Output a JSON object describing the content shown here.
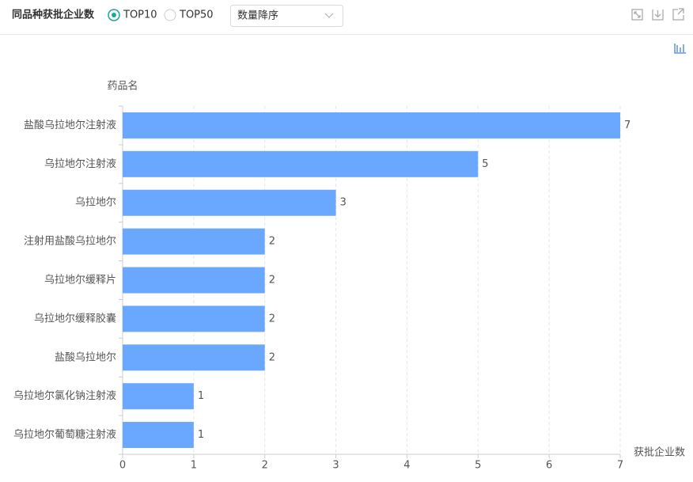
{
  "header": {
    "title": "同品种获批企业数",
    "options": [
      "TOP10",
      "TOP50"
    ],
    "selected_option": 0,
    "sort": "数量降序"
  },
  "chart_data": {
    "type": "bar",
    "orientation": "horizontal",
    "y_label": "药品名",
    "x_label": "获批企业数",
    "categories": [
      "盐酸乌拉地尔注射液",
      "乌拉地尔注射液",
      "乌拉地尔",
      "注射用盐酸乌拉地尔",
      "乌拉地尔缓释片",
      "乌拉地尔缓释胶囊",
      "盐酸乌拉地尔",
      "乌拉地尔氯化钠注射液",
      "乌拉地尔葡萄糖注射液"
    ],
    "values": [
      7,
      5,
      3,
      2,
      2,
      2,
      2,
      1,
      1
    ],
    "color": "#6aa8ff",
    "xlim": [
      0,
      7
    ],
    "xticks": [
      0,
      1,
      2,
      3,
      4,
      5,
      6,
      7
    ],
    "grid": true
  }
}
